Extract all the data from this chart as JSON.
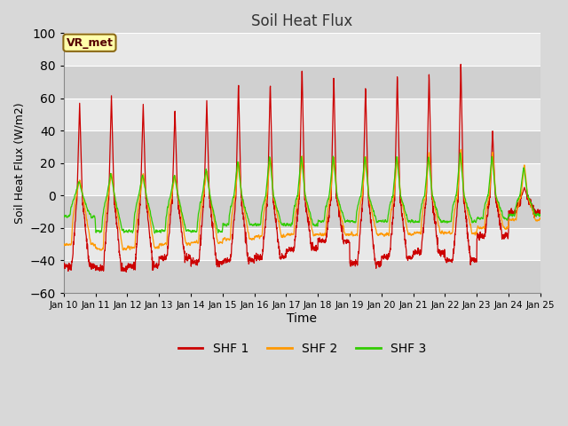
{
  "title": "Soil Heat Flux",
  "xlabel": "Time",
  "ylabel": "Soil Heat Flux (W/m2)",
  "ylim": [
    -60,
    100
  ],
  "bg_color": "#d8d8d8",
  "plot_bg_color": "#e8e8e8",
  "band_color_light": "#e8e8e8",
  "band_color_dark": "#d0d0d0",
  "grid_color": "#ffffff",
  "xtick_labels": [
    "Jan 10",
    "Jan 11",
    "Jan 12",
    "Jan 13",
    "Jan 14",
    "Jan 15",
    "Jan 16",
    "Jan 17",
    "Jan 18",
    "Jan 19",
    "Jan 20",
    "Jan 21",
    "Jan 22",
    "Jan 23",
    "Jan 24",
    "Jan 25"
  ],
  "ytick_values": [
    -60,
    -40,
    -20,
    0,
    20,
    40,
    60,
    80,
    100
  ],
  "legend_labels": [
    "SHF 1",
    "SHF 2",
    "SHF 3"
  ],
  "legend_colors": [
    "#cc0000",
    "#ff9900",
    "#33cc00"
  ],
  "vr_met_label": "VR_met",
  "series_colors": [
    "#cc0000",
    "#ff9900",
    "#33cc00"
  ],
  "n_days": 15,
  "pts_per_day": 144,
  "day_peaks_shf1": [
    57,
    62,
    57,
    53,
    60,
    70,
    70,
    80,
    75,
    68,
    75,
    76,
    82,
    40,
    5
  ],
  "night_troughs_shf1": [
    -44,
    -45,
    -43,
    -38,
    -41,
    -40,
    -38,
    -33,
    -28,
    -42,
    -38,
    -35,
    -40,
    -25,
    -10
  ],
  "day_peaks_shf2": [
    10,
    14,
    14,
    13,
    16,
    22,
    25,
    25,
    25,
    25,
    25,
    28,
    30,
    28,
    20
  ],
  "night_troughs_shf2": [
    -30,
    -33,
    -32,
    -30,
    -29,
    -27,
    -25,
    -24,
    -24,
    -24,
    -24,
    -23,
    -23,
    -20,
    -15
  ],
  "day_peaks_shf3": [
    9,
    14,
    13,
    13,
    17,
    22,
    25,
    25,
    25,
    25,
    25,
    25,
    27,
    25,
    18
  ],
  "night_troughs_shf3": [
    -13,
    -22,
    -22,
    -22,
    -22,
    -18,
    -18,
    -18,
    -16,
    -16,
    -16,
    -16,
    -16,
    -14,
    -12
  ]
}
